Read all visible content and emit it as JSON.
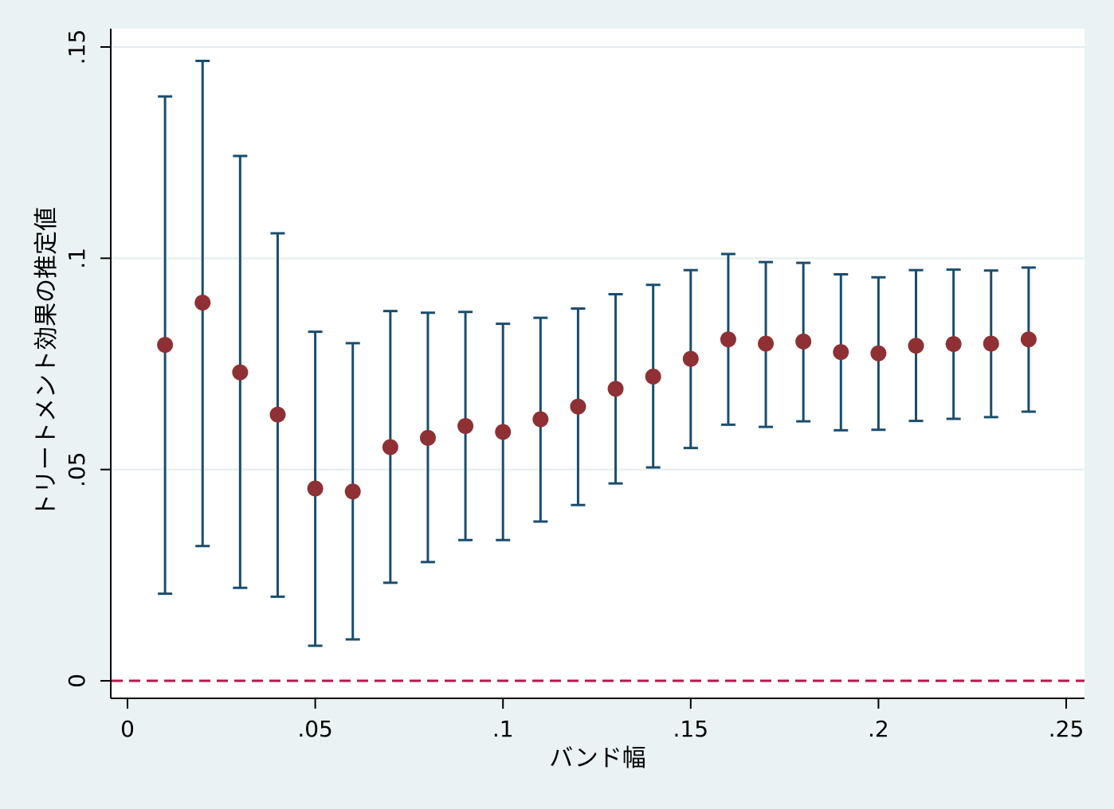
{
  "chart_data": {
    "type": "scatter",
    "title": "",
    "xlabel": "バンド幅",
    "ylabel": "トリートメント効果の推定値",
    "xlim": [
      0,
      0.25
    ],
    "ylim": [
      0,
      0.15
    ],
    "x_tick_labels": [
      "0",
      ".05",
      ".1",
      ".15",
      ".2",
      ".25"
    ],
    "x_tick_values": [
      0,
      0.05,
      0.1,
      0.15,
      0.2,
      0.25
    ],
    "y_tick_labels": [
      "0",
      ".05",
      ".1",
      ".15"
    ],
    "y_tick_values": [
      0,
      0.05,
      0.1,
      0.15
    ],
    "grid": "horizontal",
    "reference_line": {
      "y": 0,
      "style": "dashed",
      "color": "#b5194a"
    },
    "series": [
      {
        "marker_color": "#8e3034",
        "errorbar_color": "#1a4d6e",
        "x": [
          0.01,
          0.02,
          0.03,
          0.04,
          0.05,
          0.06,
          0.07,
          0.08,
          0.09,
          0.1,
          0.11,
          0.12,
          0.13,
          0.14,
          0.15,
          0.16,
          0.17,
          0.18,
          0.19,
          0.2,
          0.21,
          0.22,
          0.23,
          0.24
        ],
        "y": [
          0.0795,
          0.0895,
          0.073,
          0.063,
          0.0455,
          0.0448,
          0.0553,
          0.0575,
          0.0603,
          0.0589,
          0.0619,
          0.0649,
          0.0691,
          0.072,
          0.0762,
          0.0808,
          0.0798,
          0.0803,
          0.0778,
          0.0775,
          0.0793,
          0.0797,
          0.0798,
          0.0808
        ],
        "lower": [
          0.0206,
          0.0319,
          0.022,
          0.0199,
          0.0083,
          0.0098,
          0.0232,
          0.0281,
          0.0333,
          0.0333,
          0.0377,
          0.0416,
          0.0467,
          0.0505,
          0.0551,
          0.0606,
          0.0601,
          0.0614,
          0.0593,
          0.0594,
          0.0615,
          0.062,
          0.0624,
          0.0637
        ],
        "upper": [
          0.1383,
          0.1467,
          0.1242,
          0.1059,
          0.0826,
          0.0799,
          0.0875,
          0.0871,
          0.0873,
          0.0845,
          0.0859,
          0.0881,
          0.0915,
          0.0937,
          0.0972,
          0.101,
          0.0991,
          0.0989,
          0.0962,
          0.0955,
          0.0972,
          0.0973,
          0.0971,
          0.0978
        ]
      }
    ]
  }
}
